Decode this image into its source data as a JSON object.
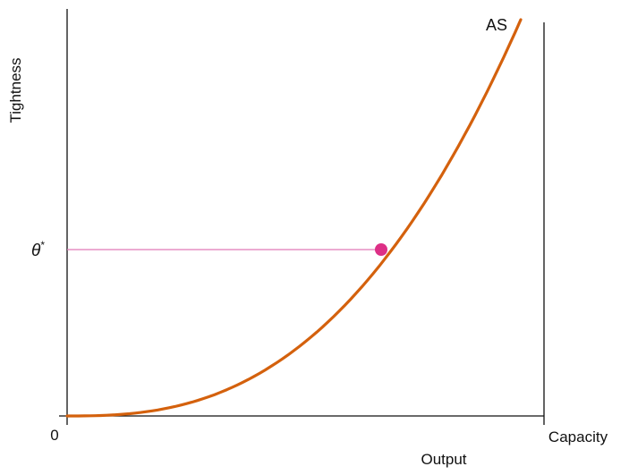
{
  "diagram": {
    "y_axis_label": "Tightness",
    "x_axis_label": "Output",
    "origin_label": "0",
    "capacity_label": "Capacity",
    "curve_label": "AS",
    "theta_symbol": "θ",
    "theta_superscript": "*",
    "colors": {
      "axes": "#111111",
      "curve": "#d4610d",
      "guide_line": "#e079b8",
      "equilibrium_point": "#dd2f86"
    }
  }
}
